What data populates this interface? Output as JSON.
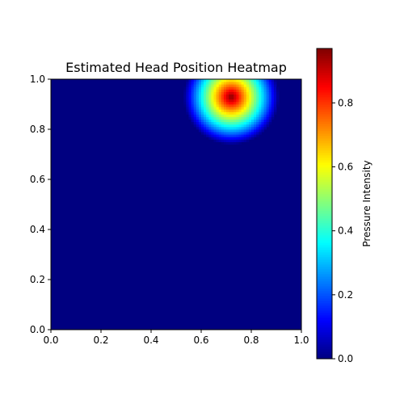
{
  "chart_data": {
    "type": "heatmap",
    "title": "Estimated Head Position Heatmap",
    "xlabel": "",
    "ylabel": "",
    "xlim": [
      0.0,
      1.0
    ],
    "ylim": [
      0.0,
      1.0
    ],
    "xticks": [
      0.0,
      0.2,
      0.4,
      0.6,
      0.8,
      1.0
    ],
    "yticks": [
      0.0,
      0.2,
      0.4,
      0.6,
      0.8,
      1.0
    ],
    "xtick_labels": [
      "0.0",
      "0.2",
      "0.4",
      "0.6",
      "0.8",
      "1.0"
    ],
    "ytick_labels": [
      "0.0",
      "0.2",
      "0.4",
      "0.6",
      "0.8",
      "1.0"
    ],
    "grid": false,
    "colormap": "jet",
    "grid_resolution": 100,
    "hotspot": {
      "x": 0.72,
      "y": 0.93,
      "peak_value": 0.97,
      "radius": 0.19
    },
    "colorbar": {
      "label": "Pressure Intensity",
      "range": [
        0.0,
        0.97
      ],
      "ticks": [
        0.0,
        0.2,
        0.4,
        0.6,
        0.8
      ],
      "tick_labels": [
        "0.0",
        "0.2",
        "0.4",
        "0.6",
        "0.8"
      ],
      "placement": "right"
    },
    "background_value": 0.0
  }
}
